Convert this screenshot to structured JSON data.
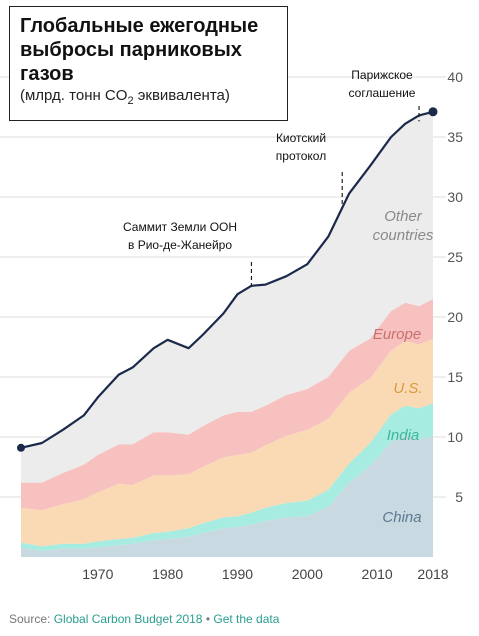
{
  "title": "Глобальные ежегодные выбросы парниковых газов",
  "subtitle_prefix": "(млрд. тонн CO",
  "subtitle_sub": "2",
  "subtitle_suffix": " эквивалента)",
  "source": {
    "prefix": "Source: ",
    "link1": "Global Carbon Budget 2018",
    "sep": " • ",
    "link2": "Get the data"
  },
  "colors": {
    "china": "#c9d9e2",
    "india": "#a6ece0",
    "us": "#fad9b5",
    "europe": "#f7c1bf",
    "other": "#ececec",
    "total": "#1b2a4a",
    "china_label": "#5b7a91",
    "india_label": "#3fb59b",
    "us_label": "#d99a3c",
    "europe_label": "#c96f6f",
    "other_label": "#8a8a8a"
  },
  "chart_data": {
    "type": "area",
    "x_ticks": [
      "1970",
      "1980",
      "1990",
      "2000",
      "2010",
      "2018"
    ],
    "y_ticks": [
      "5",
      "10",
      "15",
      "20",
      "25",
      "30",
      "35",
      "40"
    ],
    "ylim": [
      0,
      42
    ],
    "xlim": [
      1959,
      2018
    ],
    "x": [
      1959,
      1962,
      1965,
      1968,
      1970,
      1973,
      1975,
      1978,
      1980,
      1983,
      1985,
      1988,
      1990,
      1992,
      1994,
      1997,
      2000,
      2003,
      2006,
      2009,
      2012,
      2014,
      2016,
      2018
    ],
    "series": [
      {
        "name": "China",
        "values": [
          0.8,
          0.5,
          0.7,
          0.7,
          0.8,
          1.0,
          1.1,
          1.4,
          1.5,
          1.7,
          2.0,
          2.4,
          2.5,
          2.7,
          3.0,
          3.3,
          3.4,
          4.2,
          6.2,
          7.6,
          9.6,
          10.1,
          9.8,
          10.1
        ]
      },
      {
        "name": "India",
        "values": [
          0.4,
          0.4,
          0.4,
          0.4,
          0.5,
          0.5,
          0.5,
          0.6,
          0.6,
          0.7,
          0.8,
          0.9,
          0.9,
          1.0,
          1.1,
          1.2,
          1.3,
          1.4,
          1.6,
          1.9,
          2.3,
          2.5,
          2.6,
          2.7
        ]
      },
      {
        "name": "U.S.",
        "values": [
          2.9,
          3.0,
          3.3,
          3.7,
          4.1,
          4.6,
          4.4,
          4.8,
          4.7,
          4.5,
          4.7,
          5.0,
          5.1,
          5.0,
          5.2,
          5.6,
          5.9,
          5.9,
          5.9,
          5.4,
          5.3,
          5.4,
          5.3,
          5.4
        ]
      },
      {
        "name": "Europe",
        "values": [
          2.1,
          2.3,
          2.6,
          2.9,
          3.1,
          3.3,
          3.4,
          3.6,
          3.6,
          3.3,
          3.4,
          3.5,
          3.6,
          3.4,
          3.3,
          3.4,
          3.4,
          3.5,
          3.5,
          3.3,
          3.3,
          3.2,
          3.2,
          3.3
        ]
      },
      {
        "name": "Other countries",
        "values": [
          2.9,
          3.3,
          3.6,
          4.1,
          4.8,
          5.8,
          6.4,
          7.0,
          7.7,
          7.2,
          7.6,
          8.5,
          9.8,
          10.5,
          10.1,
          9.9,
          10.4,
          11.7,
          13.1,
          14.4,
          14.5,
          14.9,
          15.9,
          15.6
        ]
      }
    ],
    "total": [
      9.1,
      9.5,
      10.6,
      11.8,
      13.3,
      15.2,
      15.8,
      17.4,
      18.1,
      17.4,
      18.5,
      20.3,
      21.9,
      22.6,
      22.7,
      23.4,
      24.4,
      26.7,
      30.3,
      32.6,
      35.0,
      36.1,
      36.8,
      37.1
    ],
    "annotations": [
      {
        "line1": "Саммит Земли ООН",
        "line2": "в Рио-де-Жанейро",
        "year": 1992
      },
      {
        "line1": "Киотский",
        "line2": "протокол",
        "year": 2005
      },
      {
        "line1": "Парижское",
        "line2": "соглашение",
        "year": 2016
      }
    ],
    "series_labels": {
      "china": "China",
      "india": "India",
      "us": "U.S.",
      "europe": "Europe",
      "other_line1": "Other",
      "other_line2": "countries"
    }
  }
}
